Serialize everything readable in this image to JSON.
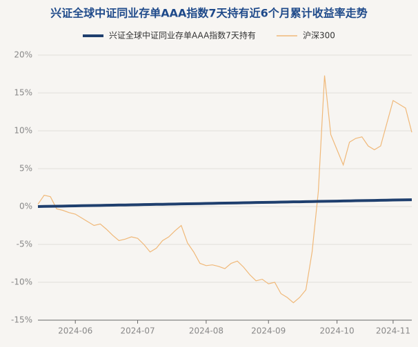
{
  "chart_data": {
    "type": "line",
    "title": "兴证全球中证同业存单AAA指数7天持有近6个月累计收益率走势",
    "categories": [
      null,
      null,
      null,
      null,
      null,
      null,
      "2024-06",
      null,
      null,
      null,
      null,
      null,
      null,
      null,
      null,
      null,
      "2024-07",
      null,
      null,
      null,
      null,
      null,
      null,
      null,
      null,
      null,
      null,
      "2024-08",
      null,
      null,
      null,
      null,
      null,
      null,
      null,
      null,
      null,
      "2024-09",
      null,
      null,
      null,
      null,
      null,
      null,
      null,
      null,
      null,
      null,
      "2024-10",
      null,
      null,
      null,
      null,
      null,
      null,
      null,
      null,
      "2024-11",
      null,
      null,
      null
    ],
    "series": [
      {
        "name": "兴证全球中证同业存单AAA指数7天持有",
        "color": "#1f3f6e",
        "values": [
          0,
          0.02,
          0.03,
          0.05,
          0.06,
          0.08,
          0.09,
          0.11,
          0.12,
          0.14,
          0.15,
          0.17,
          0.18,
          0.2,
          0.21,
          0.23,
          0.24,
          0.26,
          0.27,
          0.29,
          0.3,
          0.32,
          0.33,
          0.35,
          0.36,
          0.38,
          0.39,
          0.41,
          0.42,
          0.44,
          0.45,
          0.47,
          0.48,
          0.5,
          0.51,
          0.53,
          0.54,
          0.56,
          0.57,
          0.59,
          0.6,
          0.62,
          0.63,
          0.65,
          0.66,
          0.68,
          0.69,
          0.71,
          0.72,
          0.74,
          0.75,
          0.77,
          0.78,
          0.8,
          0.81,
          0.83,
          0.84,
          0.86,
          0.87,
          0.89,
          0.9
        ]
      },
      {
        "name": "沪深300",
        "color": "#f0b878",
        "values": [
          0.3,
          1.5,
          1.3,
          -0.3,
          -0.5,
          -0.8,
          -1.0,
          -1.5,
          -2.0,
          -2.5,
          -2.3,
          -3.0,
          -3.8,
          -4.5,
          -4.3,
          -4.0,
          -4.2,
          -5.0,
          -6.0,
          -5.5,
          -4.5,
          -4.0,
          -3.2,
          -2.5,
          -4.8,
          -6.0,
          -7.5,
          -7.8,
          -7.7,
          -7.9,
          -8.2,
          -7.5,
          -7.2,
          -8.0,
          -9.0,
          -9.8,
          -9.6,
          -10.2,
          -10.0,
          -11.5,
          -12.0,
          -12.7,
          -12.0,
          -11.0,
          -6.0,
          2.0,
          17.3,
          9.5,
          7.5,
          5.5,
          8.5,
          9.0,
          9.2,
          8.0,
          7.5,
          8.0,
          11.0,
          14.0,
          13.5,
          13.0,
          9.8
        ]
      }
    ],
    "ylim": [
      -15,
      20
    ],
    "yticks": [
      {
        "value": -15,
        "label": "-15%"
      },
      {
        "value": -10,
        "label": "-10%"
      },
      {
        "value": -5,
        "label": "-5%"
      },
      {
        "value": 0,
        "label": "0%"
      },
      {
        "value": 5,
        "label": "5%"
      },
      {
        "value": 10,
        "label": "10%"
      },
      {
        "value": 15,
        "label": "15%"
      },
      {
        "value": 20,
        "label": "20%"
      }
    ],
    "grid": true
  }
}
